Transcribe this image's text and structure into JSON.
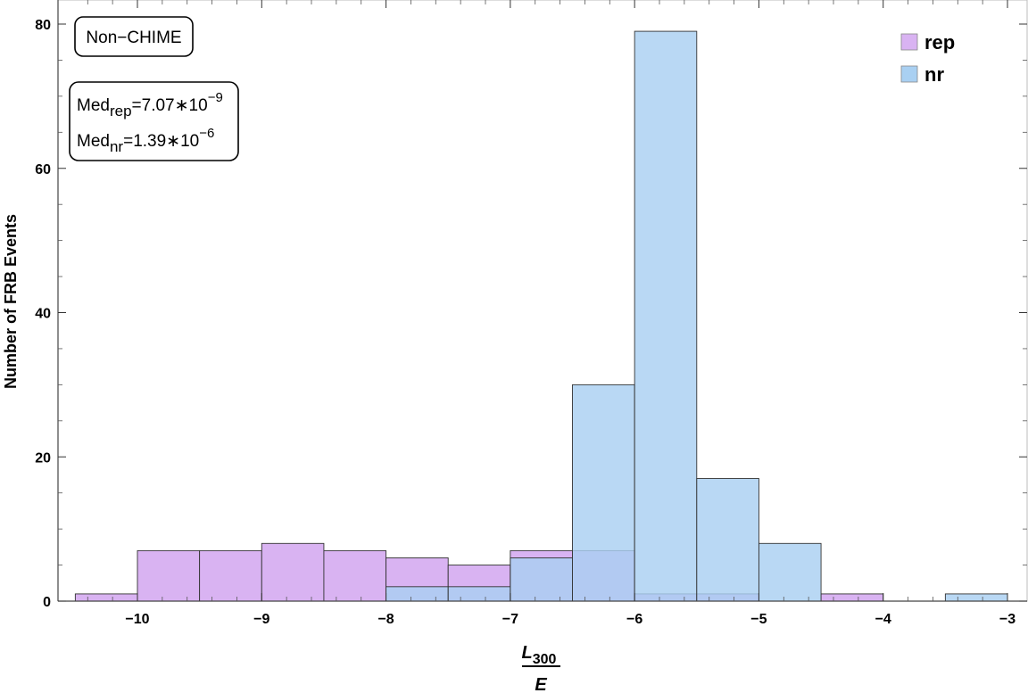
{
  "chart_data": {
    "type": "bar",
    "subtype": "overlaid-histogram",
    "title": "",
    "xlabel_numerator": "L",
    "xlabel_numerator_sub": "300",
    "xlabel_denominator": "E",
    "ylabel": "Number of FRB Events",
    "xlim": [
      -10.5,
      -3
    ],
    "ylim": [
      0,
      82
    ],
    "x_ticks": [
      -10,
      -9,
      -8,
      -7,
      -6,
      -5,
      -4,
      -3
    ],
    "y_ticks": [
      0,
      20,
      40,
      60,
      80
    ],
    "bin_width": 0.5,
    "grid": false,
    "legend_position": "top-right",
    "annotation_box": "Non−CHIME",
    "stats": {
      "rep": {
        "label": "Med",
        "sub": "rep",
        "value": "=7.07∗10",
        "exp": "−9"
      },
      "nr": {
        "label": "Med",
        "sub": "nr",
        "value": "=1.39∗10",
        "exp": "−6"
      }
    },
    "series": [
      {
        "name": "rep",
        "color": "#d9b3f2",
        "bins": [
          {
            "x0": -10.5,
            "count": 1
          },
          {
            "x0": -10.0,
            "count": 7
          },
          {
            "x0": -9.5,
            "count": 7
          },
          {
            "x0": -9.0,
            "count": 8
          },
          {
            "x0": -8.5,
            "count": 7
          },
          {
            "x0": -8.0,
            "count": 6
          },
          {
            "x0": -7.5,
            "count": 5
          },
          {
            "x0": -7.0,
            "count": 7
          },
          {
            "x0": -6.5,
            "count": 7
          },
          {
            "x0": -6.0,
            "count": 1
          },
          {
            "x0": -5.5,
            "count": 1
          },
          {
            "x0": -4.5,
            "count": 1
          }
        ]
      },
      {
        "name": "nr",
        "color": "#a9d0f2",
        "bins": [
          {
            "x0": -8.0,
            "count": 2
          },
          {
            "x0": -7.5,
            "count": 2
          },
          {
            "x0": -7.0,
            "count": 6
          },
          {
            "x0": -6.5,
            "count": 30
          },
          {
            "x0": -6.0,
            "count": 79
          },
          {
            "x0": -5.5,
            "count": 17
          },
          {
            "x0": -5.0,
            "count": 8
          },
          {
            "x0": -3.5,
            "count": 1
          }
        ]
      }
    ]
  }
}
